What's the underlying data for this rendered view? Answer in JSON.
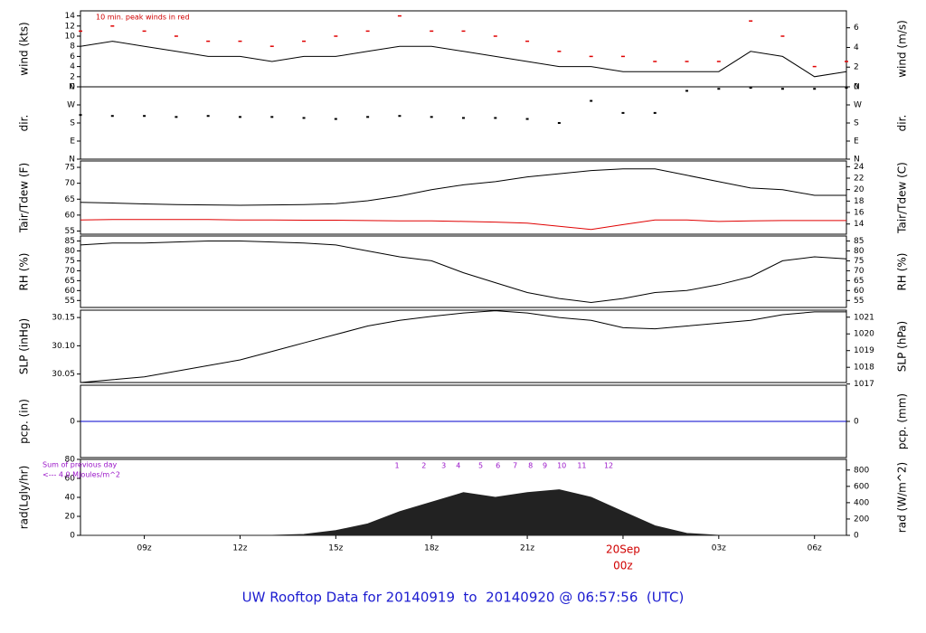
{
  "chart_data": [
    {
      "type": "line",
      "ylabel": "wind (kts)",
      "y2label": "wind (m/s)",
      "annotation": "10 min. peak winds in red",
      "x": [
        7,
        8,
        9,
        10,
        11,
        12,
        13,
        14,
        15,
        16,
        17,
        18,
        19,
        20,
        21,
        22,
        23,
        24,
        25,
        26,
        27,
        28,
        29,
        30,
        31
      ],
      "xlim": [
        7,
        31
      ],
      "ylim": [
        0,
        15
      ],
      "yticks": [
        0,
        2,
        4,
        6,
        8,
        10,
        12,
        14
      ],
      "y2lim": [
        0,
        7.72
      ],
      "y2ticks": [
        0,
        2,
        4,
        6
      ],
      "series": [
        {
          "kind": "line",
          "color": "#000000",
          "values": [
            8,
            9,
            8,
            7,
            6,
            6,
            5,
            6,
            6,
            7,
            8,
            8,
            7,
            6,
            5,
            4,
            4,
            3,
            3,
            3,
            3,
            7,
            6,
            2,
            3
          ]
        },
        {
          "kind": "dash",
          "color": "#e00000",
          "values": [
            11,
            12,
            11,
            10,
            9,
            9,
            8,
            9,
            10,
            11,
            14,
            11,
            11,
            10,
            9,
            7,
            6,
            6,
            5,
            5,
            5,
            13,
            10,
            4,
            5
          ]
        }
      ]
    },
    {
      "type": "scatter",
      "ylabel": "dir.",
      "y2label": "dir.",
      "x": [
        7,
        8,
        9,
        10,
        11,
        12,
        13,
        14,
        15,
        16,
        17,
        18,
        19,
        20,
        21,
        22,
        23,
        24,
        25,
        26,
        27,
        28,
        29,
        30,
        31
      ],
      "xlim": [
        7,
        31
      ],
      "ylim": [
        0,
        360
      ],
      "yticks": [
        {
          "value": 0,
          "label": "N"
        },
        {
          "value": 90,
          "label": "E"
        },
        {
          "value": 180,
          "label": "S"
        },
        {
          "value": 270,
          "label": "W"
        },
        {
          "value": 360,
          "label": "N"
        }
      ],
      "y2lim": [
        0,
        360
      ],
      "y2ticks": [
        {
          "value": 0,
          "label": "N"
        },
        {
          "value": 90,
          "label": "E"
        },
        {
          "value": 180,
          "label": "S"
        },
        {
          "value": 270,
          "label": "W"
        },
        {
          "value": 360,
          "label": "N"
        }
      ],
      "series": [
        {
          "kind": "points",
          "color": "#000000",
          "values": [
            220,
            215,
            215,
            210,
            215,
            210,
            210,
            205,
            200,
            210,
            215,
            210,
            205,
            205,
            200,
            180,
            290,
            230,
            230,
            340,
            350,
            355,
            350,
            350,
            355
          ]
        }
      ]
    },
    {
      "type": "line",
      "ylabel": "Tair/Tdew (F)",
      "y2label": "Tair/Tdew (C)",
      "x": [
        7,
        8,
        9,
        10,
        11,
        12,
        13,
        14,
        15,
        16,
        17,
        18,
        19,
        20,
        21,
        22,
        23,
        24,
        25,
        26,
        27,
        28,
        29,
        30,
        31
      ],
      "xlim": [
        7,
        31
      ],
      "ylim": [
        54,
        77
      ],
      "yticks": [
        55,
        60,
        65,
        70,
        75
      ],
      "y2lim": [
        12.22,
        25
      ],
      "y2ticks": [
        14,
        16,
        18,
        20,
        22,
        24
      ],
      "series": [
        {
          "kind": "line",
          "color": "#000000",
          "values": [
            64,
            63.8,
            63.5,
            63.3,
            63.2,
            63.1,
            63.2,
            63.3,
            63.6,
            64.5,
            66,
            68,
            69.5,
            70.5,
            72,
            73,
            74,
            74.5,
            74.5,
            72.5,
            70.5,
            68.5,
            68,
            66.2,
            66.2
          ]
        },
        {
          "kind": "line",
          "color": "#e00000",
          "values": [
            58.5,
            58.6,
            58.6,
            58.6,
            58.6,
            58.5,
            58.5,
            58.4,
            58.4,
            58.3,
            58.2,
            58.2,
            58,
            57.8,
            57.5,
            56.5,
            55.5,
            57,
            58.5,
            58.5,
            58,
            58.2,
            58.3,
            58.3,
            58.3
          ]
        }
      ]
    },
    {
      "type": "line",
      "ylabel": "RH (%)",
      "y2label": "RH (%)",
      "x": [
        7,
        8,
        9,
        10,
        11,
        12,
        13,
        14,
        15,
        16,
        17,
        18,
        19,
        20,
        21,
        22,
        23,
        24,
        25,
        26,
        27,
        28,
        29,
        30,
        31
      ],
      "xlim": [
        7,
        31
      ],
      "ylim": [
        51.5,
        87.5
      ],
      "yticks": [
        55,
        60,
        65,
        70,
        75,
        80,
        85
      ],
      "y2lim": [
        51.5,
        87.5
      ],
      "y2ticks": [
        55,
        60,
        65,
        70,
        75,
        80,
        85
      ],
      "series": [
        {
          "kind": "line",
          "color": "#000000",
          "values": [
            83,
            84,
            84,
            84.5,
            85,
            85,
            84.5,
            84,
            83,
            80,
            77,
            75,
            69,
            64,
            59,
            56,
            54,
            56,
            59,
            60,
            63,
            67,
            75,
            77,
            76
          ]
        }
      ]
    },
    {
      "type": "line",
      "ylabel": "SLP (inHg)",
      "y2label": "SLP (hPa)",
      "x": [
        7,
        8,
        9,
        10,
        11,
        12,
        13,
        14,
        15,
        16,
        17,
        18,
        19,
        20,
        21,
        22,
        23,
        24,
        25,
        26,
        27,
        28,
        29,
        30,
        31
      ],
      "xlim": [
        7,
        31
      ],
      "ylim": [
        30.035,
        30.163
      ],
      "yticks": [
        30.05,
        {
          "value": 30.1,
          "label": "30.10"
        },
        30.15
      ],
      "y2lim": [
        1017.09,
        1021.42
      ],
      "y2ticks": [
        1017,
        1018,
        1019,
        1020,
        1021
      ],
      "series": [
        {
          "kind": "line",
          "color": "#000000",
          "values": [
            30.035,
            30.04,
            30.045,
            30.055,
            30.065,
            30.075,
            30.09,
            30.105,
            30.12,
            30.135,
            30.145,
            30.152,
            30.158,
            30.162,
            30.158,
            30.15,
            30.145,
            30.132,
            30.13,
            30.135,
            30.14,
            30.145,
            30.155,
            30.16,
            30.16
          ]
        }
      ]
    },
    {
      "type": "line",
      "ylabel": "pcp. (in)",
      "y2label": "pcp. (mm)",
      "x": [
        7,
        8,
        9,
        10,
        11,
        12,
        13,
        14,
        15,
        16,
        17,
        18,
        19,
        20,
        21,
        22,
        23,
        24,
        25,
        26,
        27,
        28,
        29,
        30,
        31
      ],
      "xlim": [
        7,
        31
      ],
      "ylim": [
        -1,
        1
      ],
      "yticks": [
        0
      ],
      "y2lim": [
        -1,
        1
      ],
      "y2ticks": [
        0
      ],
      "series": [
        {
          "kind": "line",
          "color": "#0000cc",
          "values": [
            0,
            0,
            0,
            0,
            0,
            0,
            0,
            0,
            0,
            0,
            0,
            0,
            0,
            0,
            0,
            0,
            0,
            0,
            0,
            0,
            0,
            0,
            0,
            0,
            0
          ]
        }
      ]
    },
    {
      "type": "area",
      "ylabel": "rad(Lgly/hr)",
      "y2label": "rad (W/m^2)",
      "annotation": "Sum of previous day",
      "annotation2": "<--- 4.0 MJoules/m^2",
      "x": [
        7,
        8,
        9,
        10,
        11,
        12,
        13,
        14,
        15,
        16,
        17,
        18,
        19,
        20,
        21,
        22,
        23,
        24,
        25,
        26,
        27,
        28,
        29,
        30,
        31
      ],
      "xlim": [
        7,
        31
      ],
      "ylim": [
        0,
        80
      ],
      "yticks": [
        0,
        20,
        40,
        60,
        80
      ],
      "y2lim": [
        0,
        930.4
      ],
      "y2ticks": [
        0,
        200,
        400,
        600,
        800
      ],
      "series": [
        {
          "kind": "area",
          "color": "#222222",
          "values": [
            0,
            0,
            0,
            0,
            0,
            0,
            0,
            1,
            5,
            12,
            25,
            35,
            45,
            40,
            45,
            48,
            40,
            25,
            10,
            2,
            0,
            0,
            0,
            0,
            0
          ]
        }
      ],
      "cumulative_x": [
        16.92,
        17.76,
        18.38,
        18.84,
        19.54,
        20.08,
        20.62,
        21.1,
        21.55,
        22.08,
        22.71,
        23.55
      ],
      "cumulative_labels": [
        1,
        2,
        3,
        4,
        5,
        6,
        7,
        8,
        9,
        10,
        11,
        12
      ],
      "xticks": [
        {
          "value": 9,
          "label": "09z"
        },
        {
          "value": 12,
          "label": "12z"
        },
        {
          "value": 15,
          "label": "15z"
        },
        {
          "value": 18,
          "label": "18z"
        },
        {
          "value": 21,
          "label": "21z"
        },
        {
          "value": 24,
          "label": "00z"
        },
        {
          "value": 27,
          "label": "03z"
        },
        {
          "value": 30,
          "label": "06z"
        }
      ],
      "date_label": "20Sep",
      "date_x": 24,
      "title": "UW Rooftop Data for 20140919  to  20140920 @ 06:57:56  (UTC)"
    }
  ]
}
